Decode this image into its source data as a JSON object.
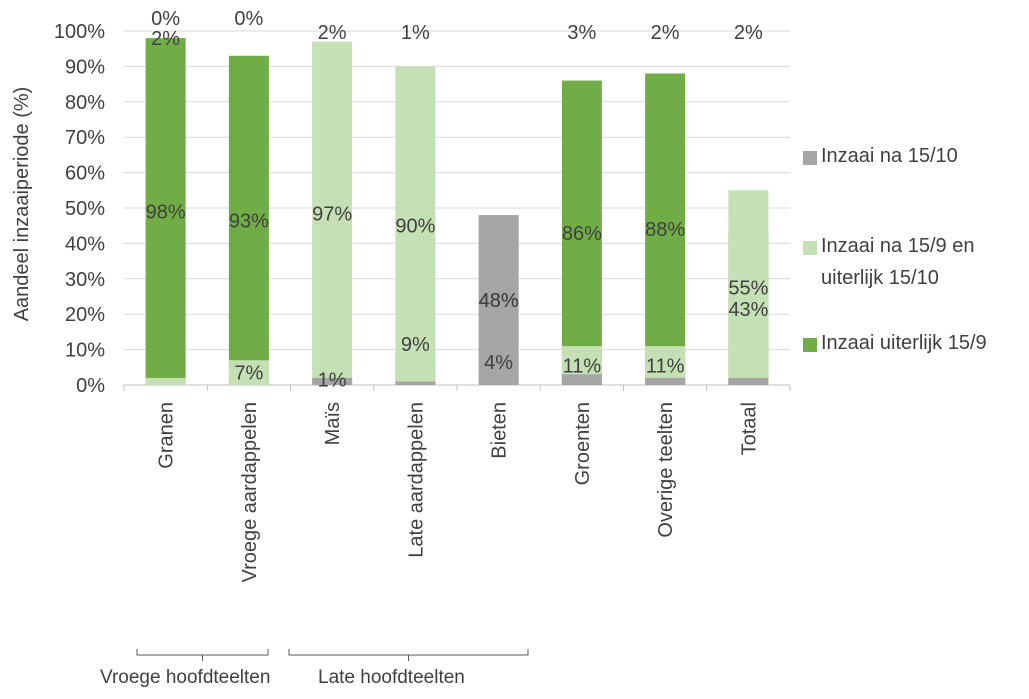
{
  "chart_data": {
    "type": "bar",
    "stacked": true,
    "categories": [
      "Granen",
      "Vroege aardappelen",
      "Maïs",
      "Late aardappelen",
      "Bieten",
      "Groenten",
      "Overige teelten",
      "Totaal"
    ],
    "series": [
      {
        "name": "Inzaai uiterlijk 15/9",
        "color": "#70ad47",
        "values": [
          98,
          93,
          1,
          9,
          4,
          86,
          88,
          43
        ],
        "labels": [
          "98%",
          "93%",
          "1%",
          "9%",
          "4%",
          "86%",
          "88%",
          "43%"
        ]
      },
      {
        "name": "Inzaai na 15/9 en uiterlijk 15/10",
        "color": "#c5e0b4",
        "values": [
          2,
          7,
          97,
          90,
          48,
          11,
          11,
          55
        ],
        "labels": [
          "2%",
          "7%",
          "97%",
          "90%",
          "48%",
          "11%",
          "11%",
          "55%"
        ]
      },
      {
        "name": "Inzaai na 15/10",
        "color": "#a5a5a5",
        "values": [
          0,
          0,
          2,
          1,
          48,
          3,
          2,
          2
        ],
        "labels": [
          "0%",
          "0%",
          "2%",
          "1%",
          "48%",
          "3%",
          "2%",
          "2%"
        ]
      }
    ],
    "legend_order": [
      2,
      1,
      0
    ],
    "ylabel": "Aandeel inzaaiperiode (%)",
    "xlabel": "",
    "ylim": [
      0,
      100
    ],
    "yticks": [
      "0%",
      "10%",
      "20%",
      "30%",
      "40%",
      "50%",
      "60%",
      "70%",
      "80%",
      "90%",
      "100%"
    ],
    "grid": true,
    "legend_position": "right",
    "groups": [
      {
        "label": "Vroege hoofdteelten",
        "categories": [
          "Granen",
          "Vroege aardappelen"
        ]
      },
      {
        "label": "Late hoofdteelten",
        "categories": [
          "Maïs",
          "Late aardappelen",
          "Bieten"
        ]
      }
    ]
  }
}
